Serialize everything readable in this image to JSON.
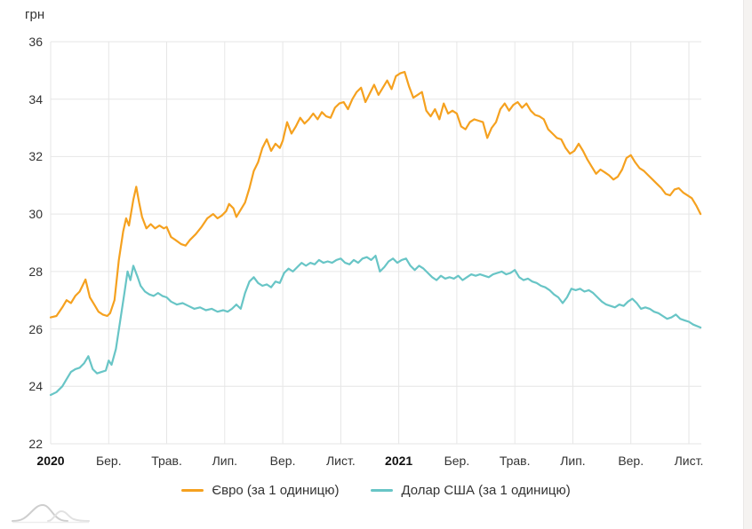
{
  "chart_data": {
    "type": "line",
    "title": "",
    "ylabel_unit": "грн",
    "ylim": [
      22,
      36
    ],
    "yticks": [
      36,
      34,
      32,
      30,
      28,
      26,
      24,
      22
    ],
    "xticks": [
      {
        "label": "2020",
        "bold": true
      },
      {
        "label": "Бер.",
        "bold": false
      },
      {
        "label": "Трав.",
        "bold": false
      },
      {
        "label": "Лип.",
        "bold": false
      },
      {
        "label": "Вер.",
        "bold": false
      },
      {
        "label": "Лист.",
        "bold": false
      },
      {
        "label": "2021",
        "bold": true
      },
      {
        "label": "Бер.",
        "bold": false
      },
      {
        "label": "Трав.",
        "bold": false
      },
      {
        "label": "Лип.",
        "bold": false
      },
      {
        "label": "Вер.",
        "bold": false
      },
      {
        "label": "Лист.",
        "bold": false
      }
    ],
    "grid": true,
    "grid_color": "#e6e6e6",
    "text_color": "#333333",
    "legend_position": "bottom",
    "x_unit": "months since Jan 2020",
    "series": [
      {
        "name": "Євро (за 1 одиницю)",
        "color": "#f5a11f",
        "points": [
          [
            0,
            26.4
          ],
          [
            0.2,
            26.45
          ],
          [
            0.4,
            26.75
          ],
          [
            0.55,
            27.0
          ],
          [
            0.7,
            26.9
          ],
          [
            0.85,
            27.15
          ],
          [
            1.0,
            27.3
          ],
          [
            1.2,
            27.72
          ],
          [
            1.35,
            27.1
          ],
          [
            1.5,
            26.85
          ],
          [
            1.65,
            26.6
          ],
          [
            1.8,
            26.5
          ],
          [
            1.95,
            26.45
          ],
          [
            2.05,
            26.55
          ],
          [
            2.2,
            27.0
          ],
          [
            2.35,
            28.4
          ],
          [
            2.5,
            29.4
          ],
          [
            2.6,
            29.85
          ],
          [
            2.7,
            29.6
          ],
          [
            2.85,
            30.5
          ],
          [
            2.95,
            30.95
          ],
          [
            3.05,
            30.4
          ],
          [
            3.15,
            29.9
          ],
          [
            3.3,
            29.5
          ],
          [
            3.45,
            29.65
          ],
          [
            3.6,
            29.5
          ],
          [
            3.75,
            29.6
          ],
          [
            3.9,
            29.5
          ],
          [
            4.0,
            29.55
          ],
          [
            4.15,
            29.2
          ],
          [
            4.3,
            29.1
          ],
          [
            4.5,
            28.95
          ],
          [
            4.65,
            28.9
          ],
          [
            4.8,
            29.1
          ],
          [
            5.0,
            29.3
          ],
          [
            5.2,
            29.55
          ],
          [
            5.4,
            29.85
          ],
          [
            5.6,
            30.0
          ],
          [
            5.75,
            29.85
          ],
          [
            5.9,
            29.95
          ],
          [
            6.05,
            30.1
          ],
          [
            6.15,
            30.35
          ],
          [
            6.3,
            30.2
          ],
          [
            6.4,
            29.9
          ],
          [
            6.55,
            30.15
          ],
          [
            6.7,
            30.4
          ],
          [
            6.85,
            30.9
          ],
          [
            7.0,
            31.5
          ],
          [
            7.15,
            31.8
          ],
          [
            7.3,
            32.3
          ],
          [
            7.45,
            32.6
          ],
          [
            7.6,
            32.2
          ],
          [
            7.75,
            32.45
          ],
          [
            7.9,
            32.3
          ],
          [
            8.0,
            32.55
          ],
          [
            8.15,
            33.2
          ],
          [
            8.3,
            32.8
          ],
          [
            8.45,
            33.05
          ],
          [
            8.6,
            33.35
          ],
          [
            8.75,
            33.15
          ],
          [
            8.9,
            33.3
          ],
          [
            9.05,
            33.5
          ],
          [
            9.2,
            33.3
          ],
          [
            9.35,
            33.55
          ],
          [
            9.5,
            33.4
          ],
          [
            9.65,
            33.35
          ],
          [
            9.8,
            33.7
          ],
          [
            9.95,
            33.85
          ],
          [
            10.1,
            33.9
          ],
          [
            10.25,
            33.65
          ],
          [
            10.4,
            34.0
          ],
          [
            10.55,
            34.25
          ],
          [
            10.7,
            34.4
          ],
          [
            10.85,
            33.9
          ],
          [
            11.0,
            34.2
          ],
          [
            11.15,
            34.5
          ],
          [
            11.3,
            34.15
          ],
          [
            11.45,
            34.4
          ],
          [
            11.6,
            34.65
          ],
          [
            11.75,
            34.35
          ],
          [
            11.9,
            34.8
          ],
          [
            12.05,
            34.9
          ],
          [
            12.2,
            34.95
          ],
          [
            12.35,
            34.45
          ],
          [
            12.5,
            34.05
          ],
          [
            12.65,
            34.15
          ],
          [
            12.8,
            34.25
          ],
          [
            12.95,
            33.6
          ],
          [
            13.1,
            33.4
          ],
          [
            13.25,
            33.65
          ],
          [
            13.4,
            33.3
          ],
          [
            13.55,
            33.85
          ],
          [
            13.7,
            33.5
          ],
          [
            13.85,
            33.6
          ],
          [
            14.0,
            33.5
          ],
          [
            14.15,
            33.05
          ],
          [
            14.3,
            32.95
          ],
          [
            14.45,
            33.2
          ],
          [
            14.6,
            33.3
          ],
          [
            14.75,
            33.25
          ],
          [
            14.9,
            33.2
          ],
          [
            15.05,
            32.65
          ],
          [
            15.2,
            33.0
          ],
          [
            15.35,
            33.2
          ],
          [
            15.5,
            33.65
          ],
          [
            15.65,
            33.85
          ],
          [
            15.8,
            33.6
          ],
          [
            15.95,
            33.8
          ],
          [
            16.1,
            33.9
          ],
          [
            16.25,
            33.7
          ],
          [
            16.4,
            33.85
          ],
          [
            16.55,
            33.6
          ],
          [
            16.7,
            33.45
          ],
          [
            16.85,
            33.4
          ],
          [
            17.0,
            33.3
          ],
          [
            17.15,
            32.95
          ],
          [
            17.3,
            32.8
          ],
          [
            17.45,
            32.65
          ],
          [
            17.6,
            32.6
          ],
          [
            17.75,
            32.3
          ],
          [
            17.9,
            32.1
          ],
          [
            18.05,
            32.2
          ],
          [
            18.2,
            32.45
          ],
          [
            18.35,
            32.2
          ],
          [
            18.5,
            31.9
          ],
          [
            18.65,
            31.65
          ],
          [
            18.8,
            31.4
          ],
          [
            18.95,
            31.55
          ],
          [
            19.1,
            31.45
          ],
          [
            19.25,
            31.35
          ],
          [
            19.4,
            31.2
          ],
          [
            19.55,
            31.3
          ],
          [
            19.7,
            31.55
          ],
          [
            19.85,
            31.95
          ],
          [
            20.0,
            32.05
          ],
          [
            20.15,
            31.8
          ],
          [
            20.3,
            31.6
          ],
          [
            20.45,
            31.5
          ],
          [
            20.6,
            31.35
          ],
          [
            20.75,
            31.2
          ],
          [
            20.9,
            31.05
          ],
          [
            21.05,
            30.9
          ],
          [
            21.2,
            30.7
          ],
          [
            21.35,
            30.65
          ],
          [
            21.5,
            30.85
          ],
          [
            21.65,
            30.9
          ],
          [
            21.8,
            30.75
          ],
          [
            21.95,
            30.65
          ],
          [
            22.1,
            30.55
          ],
          [
            22.25,
            30.3
          ],
          [
            22.4,
            30.0
          ]
        ]
      },
      {
        "name": "Долар США (за 1 одиницю)",
        "color": "#68c5c6",
        "points": [
          [
            0,
            23.7
          ],
          [
            0.2,
            23.8
          ],
          [
            0.4,
            24.0
          ],
          [
            0.55,
            24.25
          ],
          [
            0.7,
            24.5
          ],
          [
            0.85,
            24.6
          ],
          [
            1.0,
            24.65
          ],
          [
            1.15,
            24.8
          ],
          [
            1.3,
            25.05
          ],
          [
            1.45,
            24.6
          ],
          [
            1.6,
            24.45
          ],
          [
            1.75,
            24.5
          ],
          [
            1.9,
            24.55
          ],
          [
            2.0,
            24.9
          ],
          [
            2.1,
            24.75
          ],
          [
            2.25,
            25.3
          ],
          [
            2.4,
            26.3
          ],
          [
            2.55,
            27.3
          ],
          [
            2.65,
            28.0
          ],
          [
            2.75,
            27.7
          ],
          [
            2.85,
            28.2
          ],
          [
            3.0,
            27.8
          ],
          [
            3.1,
            27.5
          ],
          [
            3.25,
            27.3
          ],
          [
            3.4,
            27.2
          ],
          [
            3.55,
            27.15
          ],
          [
            3.7,
            27.25
          ],
          [
            3.85,
            27.15
          ],
          [
            4.0,
            27.1
          ],
          [
            4.15,
            26.95
          ],
          [
            4.35,
            26.85
          ],
          [
            4.55,
            26.9
          ],
          [
            4.75,
            26.8
          ],
          [
            4.95,
            26.7
          ],
          [
            5.15,
            26.75
          ],
          [
            5.35,
            26.65
          ],
          [
            5.55,
            26.7
          ],
          [
            5.75,
            26.6
          ],
          [
            5.95,
            26.65
          ],
          [
            6.1,
            26.6
          ],
          [
            6.25,
            26.7
          ],
          [
            6.4,
            26.85
          ],
          [
            6.55,
            26.7
          ],
          [
            6.7,
            27.25
          ],
          [
            6.85,
            27.65
          ],
          [
            7.0,
            27.8
          ],
          [
            7.15,
            27.6
          ],
          [
            7.3,
            27.5
          ],
          [
            7.45,
            27.55
          ],
          [
            7.6,
            27.45
          ],
          [
            7.75,
            27.65
          ],
          [
            7.9,
            27.6
          ],
          [
            8.05,
            27.95
          ],
          [
            8.2,
            28.1
          ],
          [
            8.35,
            28.0
          ],
          [
            8.5,
            28.15
          ],
          [
            8.65,
            28.3
          ],
          [
            8.8,
            28.2
          ],
          [
            8.95,
            28.3
          ],
          [
            9.1,
            28.25
          ],
          [
            9.25,
            28.4
          ],
          [
            9.4,
            28.3
          ],
          [
            9.55,
            28.35
          ],
          [
            9.7,
            28.3
          ],
          [
            9.85,
            28.4
          ],
          [
            10.0,
            28.45
          ],
          [
            10.15,
            28.3
          ],
          [
            10.3,
            28.25
          ],
          [
            10.45,
            28.4
          ],
          [
            10.6,
            28.3
          ],
          [
            10.75,
            28.45
          ],
          [
            10.9,
            28.5
          ],
          [
            11.05,
            28.4
          ],
          [
            11.2,
            28.55
          ],
          [
            11.35,
            28.0
          ],
          [
            11.5,
            28.15
          ],
          [
            11.65,
            28.35
          ],
          [
            11.8,
            28.45
          ],
          [
            11.95,
            28.3
          ],
          [
            12.1,
            28.4
          ],
          [
            12.25,
            28.45
          ],
          [
            12.4,
            28.2
          ],
          [
            12.55,
            28.05
          ],
          [
            12.7,
            28.2
          ],
          [
            12.85,
            28.1
          ],
          [
            13.0,
            27.95
          ],
          [
            13.15,
            27.8
          ],
          [
            13.3,
            27.7
          ],
          [
            13.45,
            27.85
          ],
          [
            13.6,
            27.75
          ],
          [
            13.75,
            27.8
          ],
          [
            13.9,
            27.75
          ],
          [
            14.05,
            27.85
          ],
          [
            14.2,
            27.7
          ],
          [
            14.35,
            27.8
          ],
          [
            14.5,
            27.9
          ],
          [
            14.65,
            27.85
          ],
          [
            14.8,
            27.9
          ],
          [
            14.95,
            27.85
          ],
          [
            15.1,
            27.8
          ],
          [
            15.25,
            27.9
          ],
          [
            15.4,
            27.95
          ],
          [
            15.55,
            28.0
          ],
          [
            15.7,
            27.9
          ],
          [
            15.85,
            27.95
          ],
          [
            16.0,
            28.05
          ],
          [
            16.15,
            27.8
          ],
          [
            16.3,
            27.7
          ],
          [
            16.45,
            27.75
          ],
          [
            16.6,
            27.65
          ],
          [
            16.75,
            27.6
          ],
          [
            16.9,
            27.5
          ],
          [
            17.05,
            27.45
          ],
          [
            17.2,
            27.35
          ],
          [
            17.35,
            27.2
          ],
          [
            17.5,
            27.1
          ],
          [
            17.65,
            26.9
          ],
          [
            17.8,
            27.1
          ],
          [
            17.95,
            27.4
          ],
          [
            18.1,
            27.35
          ],
          [
            18.25,
            27.4
          ],
          [
            18.4,
            27.3
          ],
          [
            18.55,
            27.35
          ],
          [
            18.7,
            27.25
          ],
          [
            18.85,
            27.1
          ],
          [
            19.0,
            26.95
          ],
          [
            19.15,
            26.85
          ],
          [
            19.3,
            26.8
          ],
          [
            19.45,
            26.75
          ],
          [
            19.6,
            26.85
          ],
          [
            19.75,
            26.8
          ],
          [
            19.9,
            26.95
          ],
          [
            20.05,
            27.05
          ],
          [
            20.2,
            26.9
          ],
          [
            20.35,
            26.7
          ],
          [
            20.5,
            26.75
          ],
          [
            20.65,
            26.7
          ],
          [
            20.8,
            26.6
          ],
          [
            20.95,
            26.55
          ],
          [
            21.1,
            26.45
          ],
          [
            21.25,
            26.35
          ],
          [
            21.4,
            26.4
          ],
          [
            21.55,
            26.5
          ],
          [
            21.7,
            26.35
          ],
          [
            21.85,
            26.3
          ],
          [
            22.0,
            26.25
          ],
          [
            22.15,
            26.15
          ],
          [
            22.4,
            26.05
          ]
        ]
      }
    ]
  },
  "icons": {
    "watermark": "area-sparkline-logo"
  }
}
